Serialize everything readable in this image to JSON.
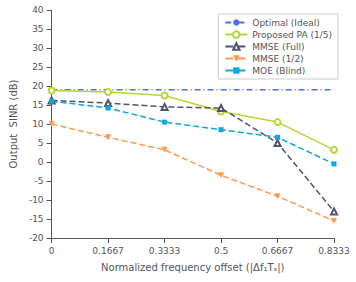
{
  "chart_data": {
    "type": "line",
    "xlabel": "Normalized frequency offset (|Δf₁Tₛ|)",
    "ylabel": "Output  SINR (dB)",
    "x": [
      0,
      0.1667,
      0.3333,
      0.5,
      0.6667,
      0.8333
    ],
    "series": [
      {
        "name": "Optimal (Ideal)",
        "values": [
          19.0,
          19.0,
          19.0,
          19.0,
          19.0,
          19.0
        ],
        "line_style": "dashdot",
        "marker": "none"
      },
      {
        "name": "Proposed PA (1/5)",
        "values": [
          18.8,
          18.4,
          17.5,
          13.3,
          10.5,
          3.2
        ],
        "line_style": "solid",
        "marker": "circle"
      },
      {
        "name": "MMSE (Full)",
        "values": [
          16.2,
          15.5,
          14.5,
          14.2,
          5.0,
          -13.0
        ],
        "line_style": "dashed",
        "marker": "triangle"
      },
      {
        "name": "MMSE (1/2)",
        "values": [
          10.0,
          6.5,
          3.2,
          -3.5,
          -9.0,
          -15.5
        ],
        "line_style": "dashed",
        "marker": "triangle_down"
      },
      {
        "name": "MOE (Blind)",
        "values": [
          16.0,
          14.2,
          10.5,
          8.5,
          6.5,
          -0.5
        ],
        "line_style": "dashed",
        "marker": "square"
      }
    ],
    "xlim": [
      0,
      0.8333
    ],
    "xticks": [
      0,
      0.1667,
      0.3333,
      0.5,
      0.6667,
      0.8333
    ],
    "ylim": [
      -20,
      40
    ],
    "yticks": [
      -20,
      -15,
      -10,
      -5,
      0,
      5,
      10,
      15,
      20,
      25,
      30,
      35,
      40
    ],
    "grid": false,
    "legend": "upper right"
  }
}
